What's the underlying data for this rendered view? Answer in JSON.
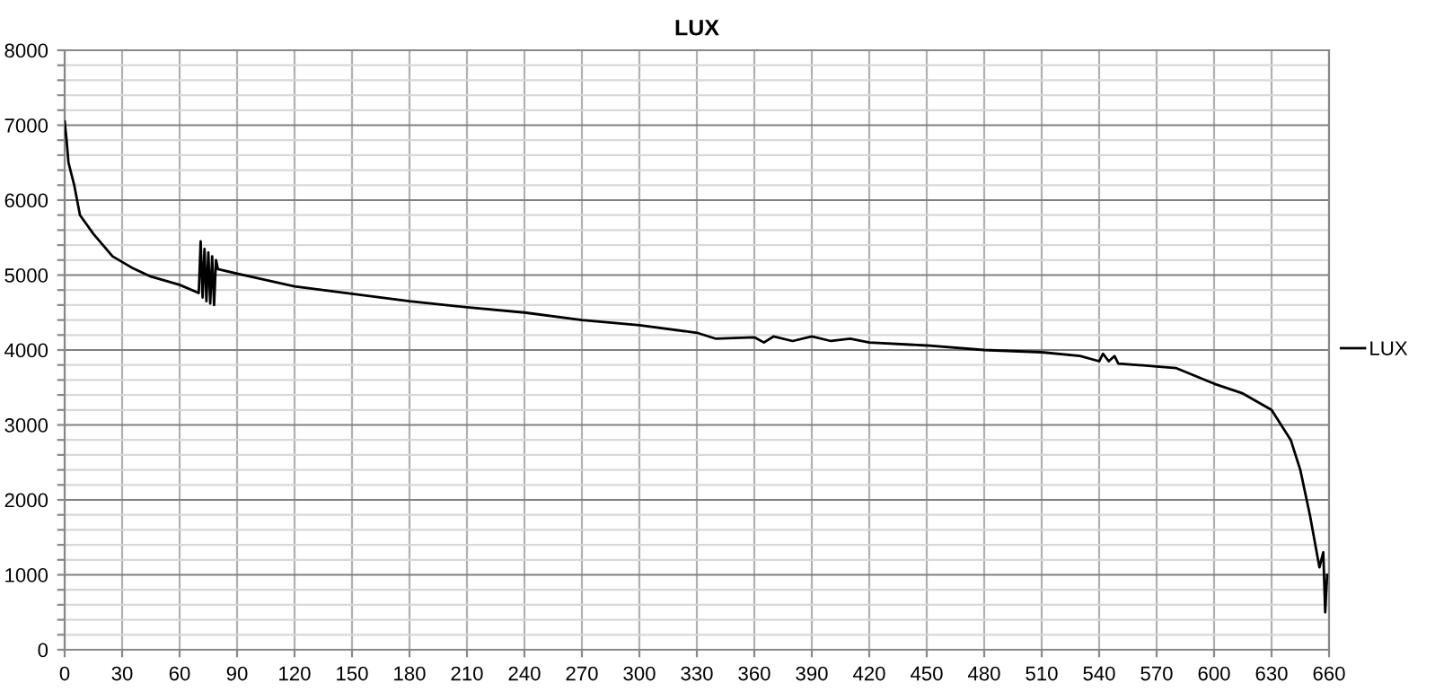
{
  "chart_data": {
    "type": "line",
    "title": "LUX",
    "legend": "right",
    "grid": true,
    "marker": "none",
    "line_style": "solid",
    "xlim": [
      0,
      660
    ],
    "xticks": [
      0,
      30,
      60,
      90,
      120,
      150,
      180,
      210,
      240,
      270,
      300,
      330,
      360,
      390,
      420,
      450,
      480,
      510,
      540,
      570,
      600,
      630,
      660
    ],
    "ylim": [
      0,
      8000
    ],
    "yticks": [
      0,
      {
        "value": 200,
        "label": null
      },
      {
        "value": 400,
        "label": null
      },
      {
        "value": 600,
        "label": null
      },
      {
        "value": 800,
        "label": null
      },
      1000,
      {
        "value": 1200,
        "label": null
      },
      {
        "value": 1400,
        "label": null
      },
      {
        "value": 1600,
        "label": null
      },
      {
        "value": 1800,
        "label": null
      },
      2000,
      {
        "value": 2200,
        "label": null
      },
      {
        "value": 2400,
        "label": null
      },
      {
        "value": 2600,
        "label": null
      },
      {
        "value": 2800,
        "label": null
      },
      3000,
      {
        "value": 3200,
        "label": null
      },
      {
        "value": 3400,
        "label": null
      },
      {
        "value": 3600,
        "label": null
      },
      {
        "value": 3800,
        "label": null
      },
      4000,
      {
        "value": 4200,
        "label": null
      },
      {
        "value": 4400,
        "label": null
      },
      {
        "value": 4600,
        "label": null
      },
      {
        "value": 4800,
        "label": null
      },
      5000,
      {
        "value": 5200,
        "label": null
      },
      {
        "value": 5400,
        "label": null
      },
      {
        "value": 5600,
        "label": null
      },
      {
        "value": 5800,
        "label": null
      },
      6000,
      {
        "value": 6200,
        "label": null
      },
      {
        "value": 6400,
        "label": null
      },
      {
        "value": 6600,
        "label": null
      },
      {
        "value": 6800,
        "label": null
      },
      7000,
      {
        "value": 7200,
        "label": null
      },
      {
        "value": 7400,
        "label": null
      },
      {
        "value": 7600,
        "label": null
      },
      {
        "value": 7800,
        "label": null
      },
      8000
    ],
    "series": [
      {
        "name": "LUX",
        "color": "#000000",
        "x": [
          0,
          1,
          2,
          5,
          8,
          15,
          25,
          35,
          45,
          60,
          70,
          71,
          72,
          73,
          74,
          75,
          76,
          77,
          78,
          79,
          80,
          90,
          120,
          150,
          180,
          210,
          240,
          270,
          300,
          330,
          340,
          360,
          365,
          370,
          380,
          390,
          400,
          410,
          420,
          450,
          480,
          510,
          530,
          540,
          542,
          545,
          548,
          550,
          570,
          580,
          600,
          615,
          630,
          640,
          645,
          650,
          655,
          657,
          658,
          659
        ],
        "values": [
          7050,
          6800,
          6500,
          6200,
          5800,
          5550,
          5250,
          5100,
          4980,
          4870,
          4760,
          5450,
          4700,
          5350,
          4650,
          5300,
          4620,
          5250,
          4600,
          5200,
          5080,
          5020,
          4850,
          4750,
          4650,
          4570,
          4500,
          4400,
          4330,
          4230,
          4150,
          4170,
          4100,
          4180,
          4120,
          4180,
          4120,
          4150,
          4100,
          4060,
          4000,
          3970,
          3920,
          3850,
          3950,
          3850,
          3920,
          3820,
          3780,
          3760,
          3550,
          3420,
          3200,
          2800,
          2400,
          1800,
          1100,
          1300,
          500,
          1000
        ]
      }
    ]
  }
}
